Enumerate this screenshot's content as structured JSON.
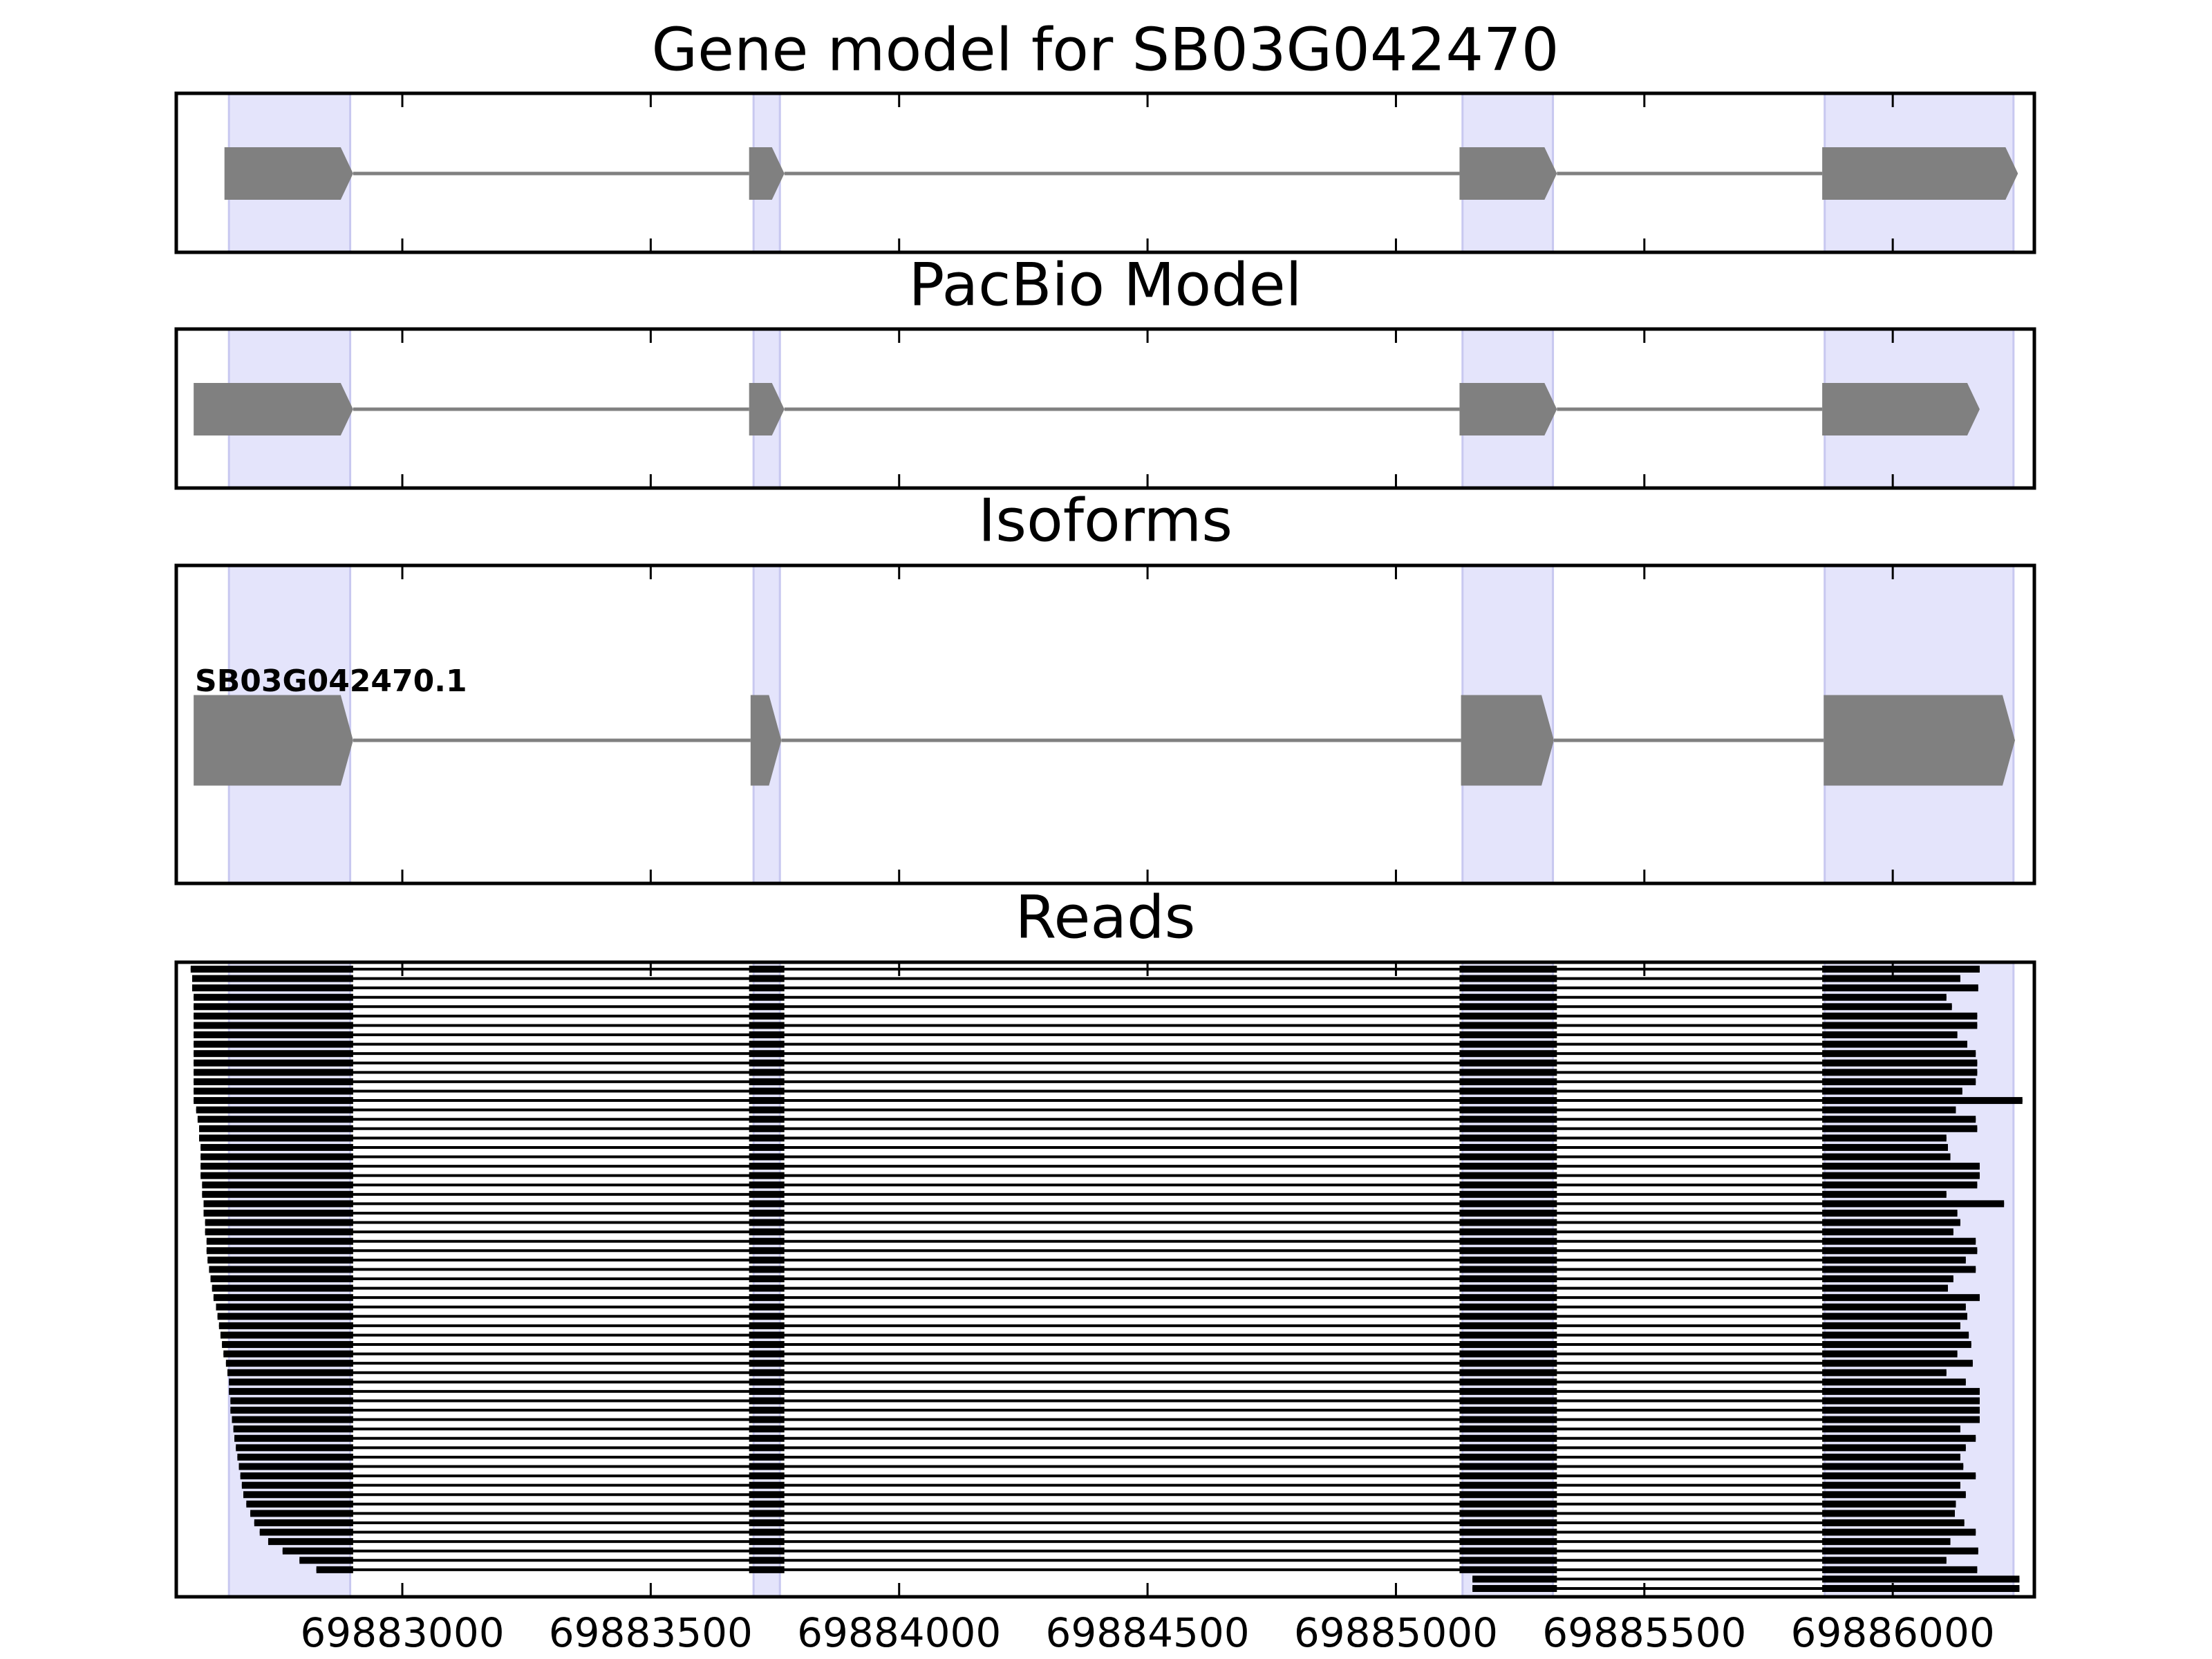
{
  "chart_data": [
    {
      "type": "gene-model",
      "title": "Gene model for SB03G042470",
      "xlim": [
        69882545,
        69886285
      ],
      "xticks": [
        69883000,
        69883500,
        69884000,
        69884500,
        69885000,
        69885500,
        69886000
      ],
      "highlight": [
        [
          69882651,
          69882895
        ],
        [
          69883707,
          69883760
        ],
        [
          69885134,
          69885316
        ],
        [
          69885863,
          69886243
        ]
      ],
      "highlight_color": "#e4e4fb",
      "color": "#808080",
      "exons": [
        [
          69882642,
          69882901
        ],
        [
          69883698,
          69883769
        ],
        [
          69885128,
          69885324
        ],
        [
          69885858,
          69886252
        ]
      ]
    },
    {
      "type": "gene-model",
      "title": "PacBio Model",
      "xlim": [
        69882545,
        69886285
      ],
      "xticks": [
        69883000,
        69883500,
        69884000,
        69884500,
        69885000,
        69885500,
        69886000
      ],
      "highlight": [
        [
          69882651,
          69882895
        ],
        [
          69883707,
          69883760
        ],
        [
          69885134,
          69885316
        ],
        [
          69885863,
          69886243
        ]
      ],
      "highlight_color": "#e4e4fb",
      "color": "#808080",
      "exons": [
        [
          69882580,
          69882901
        ],
        [
          69883698,
          69883769
        ],
        [
          69885128,
          69885324
        ],
        [
          69885858,
          69886175
        ]
      ]
    },
    {
      "type": "gene-model",
      "title": "Isoforms",
      "label": "SB03G042470.1",
      "xlim": [
        69882545,
        69886285
      ],
      "xticks": [
        69883000,
        69883500,
        69884000,
        69884500,
        69885000,
        69885500,
        69886000
      ],
      "highlight": [
        [
          69882651,
          69882895
        ],
        [
          69883707,
          69883760
        ],
        [
          69885134,
          69885316
        ],
        [
          69885863,
          69886243
        ]
      ],
      "highlight_color": "#e4e4fb",
      "color": "#808080",
      "exons": [
        [
          69882580,
          69882901
        ],
        [
          69883701,
          69883763
        ],
        [
          69885131,
          69885318
        ],
        [
          69885861,
          69886246
        ]
      ]
    },
    {
      "type": "reads",
      "title": "Reads",
      "xlim": [
        69882545,
        69886285
      ],
      "xticks": [
        69883000,
        69883500,
        69884000,
        69884500,
        69885000,
        69885500,
        69886000
      ],
      "highlight": [
        [
          69882651,
          69882895
        ],
        [
          69883707,
          69883760
        ],
        [
          69885134,
          69885316
        ],
        [
          69885863,
          69886243
        ]
      ],
      "highlight_color": "#e4e4fb",
      "color": "#000000",
      "introns": [
        [
          69882901,
          69883698
        ],
        [
          69883769,
          69885128
        ],
        [
          69885324,
          69885858
        ]
      ],
      "reads": [
        [
          69882574,
          69886175
        ],
        [
          69882577,
          69886136
        ],
        [
          69882577,
          69886172
        ],
        [
          69882580,
          69886108
        ],
        [
          69882580,
          69886119
        ],
        [
          69882580,
          69886170
        ],
        [
          69882580,
          69886170
        ],
        [
          69882580,
          69886130
        ],
        [
          69882580,
          69886150
        ],
        [
          69882580,
          69886167
        ],
        [
          69882580,
          69886170
        ],
        [
          69882580,
          69886170
        ],
        [
          69882580,
          69886167
        ],
        [
          69882580,
          69886140
        ],
        [
          69882580,
          69886261
        ],
        [
          69882585,
          69886127
        ],
        [
          69882588,
          69886167
        ],
        [
          69882591,
          69886170
        ],
        [
          69882591,
          69886108
        ],
        [
          69882594,
          69886111
        ],
        [
          69882594,
          69886116
        ],
        [
          69882594,
          69886175
        ],
        [
          69882594,
          69886175
        ],
        [
          69882597,
          69886170
        ],
        [
          69882597,
          69886108
        ],
        [
          69882600,
          69886224
        ],
        [
          69882600,
          69886130
        ],
        [
          69882603,
          69886136
        ],
        [
          69882603,
          69886122
        ],
        [
          69882606,
          69886167
        ],
        [
          69882606,
          69886170
        ],
        [
          69882608,
          69886147
        ],
        [
          69882611,
          69886167
        ],
        [
          69882614,
          69886122
        ],
        [
          69882617,
          69886111
        ],
        [
          69882620,
          69886175
        ],
        [
          69882625,
          69886147
        ],
        [
          69882628,
          69886150
        ],
        [
          69882631,
          69886136
        ],
        [
          69882634,
          69886153
        ],
        [
          69882637,
          69886158
        ],
        [
          69882640,
          69886130
        ],
        [
          69882645,
          69886161
        ],
        [
          69882648,
          69886108
        ],
        [
          69882651,
          69886147
        ],
        [
          69882651,
          69886175
        ],
        [
          69882654,
          69886175
        ],
        [
          69882654,
          69886175
        ],
        [
          69882657,
          69886175
        ],
        [
          69882660,
          69886136
        ],
        [
          69882662,
          69886167
        ],
        [
          69882665,
          69886147
        ],
        [
          69882668,
          69886136
        ],
        [
          69882671,
          69886142
        ],
        [
          69882674,
          69886167
        ],
        [
          69882677,
          69886136
        ],
        [
          69882680,
          69886147
        ],
        [
          69882686,
          69886127
        ],
        [
          69882694,
          69886125
        ],
        [
          69882702,
          69886144
        ],
        [
          69882713,
          69886167
        ],
        [
          69882730,
          69886116
        ],
        [
          69882759,
          69886172
        ],
        [
          69882793,
          69886108
        ],
        [
          69882827,
          69886170
        ],
        [
          69885154,
          69886255
        ],
        [
          69885154,
          69886255
        ]
      ]
    }
  ]
}
